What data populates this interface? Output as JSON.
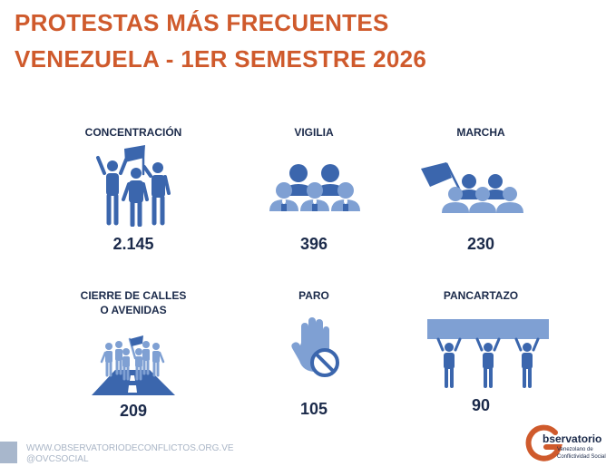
{
  "title": {
    "line1": "PROTESTAS MÁS FRECUENTES",
    "line2": "VENEZUELA - 1ER SEMESTRE 2026"
  },
  "categories": [
    {
      "label": "CONCENTRACIÓN",
      "value": "2.145",
      "icon": "crowd-with-flag-icon"
    },
    {
      "label": "VIGILIA",
      "value": "396",
      "icon": "candlelight-vigil-icon"
    },
    {
      "label": "MARCHA",
      "value": "230",
      "icon": "march-with-flag-icon"
    },
    {
      "label_line1": "CIERRE DE CALLES",
      "label_line2": "O AVENIDAS",
      "value": "209",
      "icon": "road-blockade-icon"
    },
    {
      "label": "PARO",
      "value": "105",
      "icon": "stop-hand-icon"
    },
    {
      "label": "PANCARTAZO",
      "value": "90",
      "icon": "banner-holders-icon"
    }
  ],
  "footer": {
    "website": "WWW.OBSERVATORIODECONFLICTOS.ORG.VE",
    "social": "@OVCSOCIAL"
  },
  "logo": {
    "main": "bservatorio",
    "sub1": "Venezolano de",
    "sub2": "Conflictividad Social"
  },
  "colors": {
    "title": "#cf5a2c",
    "icon_dark": "#3b66ad",
    "icon_light": "#7fa0d3",
    "text": "#1b2a4a"
  }
}
